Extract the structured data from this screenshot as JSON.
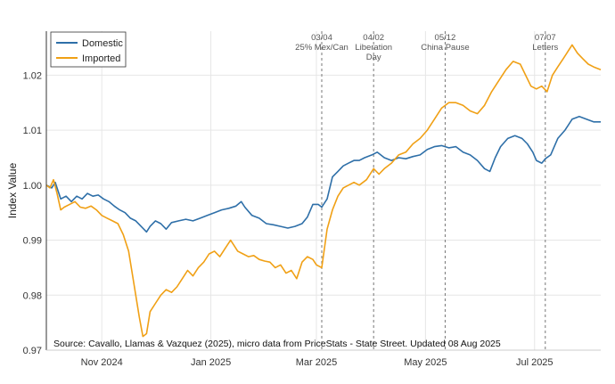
{
  "chart_data": {
    "type": "line",
    "ylabel": "Index Value",
    "xlabel": "",
    "ylim": [
      0.97,
      1.028
    ],
    "y_ticks": [
      {
        "value": 0.97,
        "label": "0.97"
      },
      {
        "value": 0.98,
        "label": "0.98"
      },
      {
        "value": 0.99,
        "label": "0.99"
      },
      {
        "value": 1.0,
        "label": "1.00"
      },
      {
        "value": 1.01,
        "label": "1.01"
      },
      {
        "value": 1.02,
        "label": "1.02"
      }
    ],
    "x_range": [
      "2024-10-01",
      "2025-08-07"
    ],
    "x_ticks": [
      {
        "date": "2024-11-01",
        "label": "Nov 2024"
      },
      {
        "date": "2025-01-01",
        "label": "Jan 2025"
      },
      {
        "date": "2025-03-01",
        "label": "Mar 2025"
      },
      {
        "date": "2025-05-01",
        "label": "May 2025"
      },
      {
        "date": "2025-07-01",
        "label": "Jul 2025"
      }
    ],
    "events": [
      {
        "date": "2025-03-04",
        "label": [
          "03/04",
          "25% Mex/Can"
        ]
      },
      {
        "date": "2025-04-02",
        "label": [
          "04/02",
          "Liberation",
          "Day"
        ]
      },
      {
        "date": "2025-05-12",
        "label": [
          "05/12",
          "China Pause"
        ]
      },
      {
        "date": "2025-07-07",
        "label": [
          "07/07",
          "Letters"
        ]
      }
    ],
    "legend_position": "top-left",
    "grid": true,
    "series": [
      {
        "name": "Domestic",
        "color": "#2e6fa8",
        "points": [
          [
            "2024-10-01",
            1.0
          ],
          [
            "2024-10-04",
            0.9995
          ],
          [
            "2024-10-06",
            1.0005
          ],
          [
            "2024-10-09",
            0.9975
          ],
          [
            "2024-10-12",
            0.998
          ],
          [
            "2024-10-15",
            0.997
          ],
          [
            "2024-10-18",
            0.998
          ],
          [
            "2024-10-21",
            0.9975
          ],
          [
            "2024-10-24",
            0.9985
          ],
          [
            "2024-10-27",
            0.998
          ],
          [
            "2024-10-30",
            0.9982
          ],
          [
            "2024-11-02",
            0.9975
          ],
          [
            "2024-11-05",
            0.997
          ],
          [
            "2024-11-08",
            0.9962
          ],
          [
            "2024-11-11",
            0.9955
          ],
          [
            "2024-11-14",
            0.995
          ],
          [
            "2024-11-17",
            0.994
          ],
          [
            "2024-11-20",
            0.9935
          ],
          [
            "2024-11-23",
            0.9925
          ],
          [
            "2024-11-26",
            0.9915
          ],
          [
            "2024-11-28",
            0.9925
          ],
          [
            "2024-12-01",
            0.9935
          ],
          [
            "2024-12-04",
            0.993
          ],
          [
            "2024-12-07",
            0.992
          ],
          [
            "2024-12-10",
            0.9932
          ],
          [
            "2024-12-14",
            0.9935
          ],
          [
            "2024-12-18",
            0.9938
          ],
          [
            "2024-12-22",
            0.9935
          ],
          [
            "2024-12-26",
            0.994
          ],
          [
            "2024-12-30",
            0.9945
          ],
          [
            "2025-01-03",
            0.995
          ],
          [
            "2025-01-07",
            0.9955
          ],
          [
            "2025-01-11",
            0.9958
          ],
          [
            "2025-01-15",
            0.9962
          ],
          [
            "2025-01-18",
            0.997
          ],
          [
            "2025-01-20",
            0.996
          ],
          [
            "2025-01-24",
            0.9945
          ],
          [
            "2025-01-28",
            0.994
          ],
          [
            "2025-02-01",
            0.993
          ],
          [
            "2025-02-05",
            0.9928
          ],
          [
            "2025-02-09",
            0.9925
          ],
          [
            "2025-02-13",
            0.9922
          ],
          [
            "2025-02-17",
            0.9925
          ],
          [
            "2025-02-21",
            0.993
          ],
          [
            "2025-02-24",
            0.9942
          ],
          [
            "2025-02-27",
            0.9965
          ],
          [
            "2025-03-02",
            0.9965
          ],
          [
            "2025-03-04",
            0.996
          ],
          [
            "2025-03-07",
            0.9975
          ],
          [
            "2025-03-10",
            1.0015
          ],
          [
            "2025-03-13",
            1.0025
          ],
          [
            "2025-03-16",
            1.0035
          ],
          [
            "2025-03-19",
            1.004
          ],
          [
            "2025-03-22",
            1.0045
          ],
          [
            "2025-03-25",
            1.0045
          ],
          [
            "2025-03-28",
            1.005
          ],
          [
            "2025-04-01",
            1.0055
          ],
          [
            "2025-04-04",
            1.006
          ],
          [
            "2025-04-08",
            1.005
          ],
          [
            "2025-04-12",
            1.0045
          ],
          [
            "2025-04-16",
            1.005
          ],
          [
            "2025-04-20",
            1.0048
          ],
          [
            "2025-04-24",
            1.0052
          ],
          [
            "2025-04-28",
            1.0055
          ],
          [
            "2025-05-02",
            1.0065
          ],
          [
            "2025-05-06",
            1.007
          ],
          [
            "2025-05-10",
            1.0072
          ],
          [
            "2025-05-14",
            1.0068
          ],
          [
            "2025-05-18",
            1.007
          ],
          [
            "2025-05-22",
            1.006
          ],
          [
            "2025-05-26",
            1.0055
          ],
          [
            "2025-05-30",
            1.0045
          ],
          [
            "2025-06-03",
            1.003
          ],
          [
            "2025-06-06",
            1.0025
          ],
          [
            "2025-06-09",
            1.005
          ],
          [
            "2025-06-12",
            1.007
          ],
          [
            "2025-06-16",
            1.0085
          ],
          [
            "2025-06-20",
            1.009
          ],
          [
            "2025-06-24",
            1.0085
          ],
          [
            "2025-06-27",
            1.0075
          ],
          [
            "2025-06-30",
            1.006
          ],
          [
            "2025-07-02",
            1.0045
          ],
          [
            "2025-07-05",
            1.004
          ],
          [
            "2025-07-07",
            1.0048
          ],
          [
            "2025-07-10",
            1.0055
          ],
          [
            "2025-07-14",
            1.0085
          ],
          [
            "2025-07-18",
            1.01
          ],
          [
            "2025-07-22",
            1.012
          ],
          [
            "2025-07-26",
            1.0125
          ],
          [
            "2025-07-30",
            1.012
          ],
          [
            "2025-08-03",
            1.0115
          ],
          [
            "2025-08-07",
            1.0115
          ]
        ]
      },
      {
        "name": "Imported",
        "color": "#f0a015",
        "points": [
          [
            "2024-10-01",
            1.0
          ],
          [
            "2024-10-03",
            0.9995
          ],
          [
            "2024-10-05",
            1.001
          ],
          [
            "2024-10-07",
            0.9985
          ],
          [
            "2024-10-09",
            0.9955
          ],
          [
            "2024-10-11",
            0.996
          ],
          [
            "2024-10-14",
            0.9965
          ],
          [
            "2024-10-17",
            0.997
          ],
          [
            "2024-10-20",
            0.996
          ],
          [
            "2024-10-23",
            0.9958
          ],
          [
            "2024-10-26",
            0.9962
          ],
          [
            "2024-10-29",
            0.9955
          ],
          [
            "2024-11-01",
            0.9945
          ],
          [
            "2024-11-04",
            0.994
          ],
          [
            "2024-11-07",
            0.9935
          ],
          [
            "2024-11-10",
            0.993
          ],
          [
            "2024-11-13",
            0.991
          ],
          [
            "2024-11-16",
            0.988
          ],
          [
            "2024-11-19",
            0.982
          ],
          [
            "2024-11-22",
            0.976
          ],
          [
            "2024-11-24",
            0.9725
          ],
          [
            "2024-11-26",
            0.973
          ],
          [
            "2024-11-28",
            0.977
          ],
          [
            "2024-12-01",
            0.9785
          ],
          [
            "2024-12-04",
            0.98
          ],
          [
            "2024-12-07",
            0.981
          ],
          [
            "2024-12-10",
            0.9805
          ],
          [
            "2024-12-13",
            0.9815
          ],
          [
            "2024-12-16",
            0.983
          ],
          [
            "2024-12-19",
            0.9845
          ],
          [
            "2024-12-22",
            0.9835
          ],
          [
            "2024-12-25",
            0.985
          ],
          [
            "2024-12-28",
            0.986
          ],
          [
            "2024-12-31",
            0.9875
          ],
          [
            "2025-01-03",
            0.988
          ],
          [
            "2025-01-06",
            0.987
          ],
          [
            "2025-01-09",
            0.9885
          ],
          [
            "2025-01-12",
            0.99
          ],
          [
            "2025-01-14",
            0.989
          ],
          [
            "2025-01-16",
            0.988
          ],
          [
            "2025-01-19",
            0.9875
          ],
          [
            "2025-01-22",
            0.987
          ],
          [
            "2025-01-25",
            0.9872
          ],
          [
            "2025-01-28",
            0.9865
          ],
          [
            "2025-01-31",
            0.9862
          ],
          [
            "2025-02-03",
            0.986
          ],
          [
            "2025-02-06",
            0.985
          ],
          [
            "2025-02-09",
            0.9855
          ],
          [
            "2025-02-12",
            0.984
          ],
          [
            "2025-02-15",
            0.9845
          ],
          [
            "2025-02-18",
            0.983
          ],
          [
            "2025-02-21",
            0.986
          ],
          [
            "2025-02-24",
            0.987
          ],
          [
            "2025-02-27",
            0.9865
          ],
          [
            "2025-03-01",
            0.9855
          ],
          [
            "2025-03-04",
            0.985
          ],
          [
            "2025-03-07",
            0.992
          ],
          [
            "2025-03-10",
            0.9955
          ],
          [
            "2025-03-13",
            0.998
          ],
          [
            "2025-03-16",
            0.9995
          ],
          [
            "2025-03-19",
            1.0
          ],
          [
            "2025-03-22",
            1.0005
          ],
          [
            "2025-03-25",
            1.0
          ],
          [
            "2025-03-29",
            1.001
          ],
          [
            "2025-04-02",
            1.003
          ],
          [
            "2025-04-05",
            1.002
          ],
          [
            "2025-04-08",
            1.003
          ],
          [
            "2025-04-12",
            1.004
          ],
          [
            "2025-04-16",
            1.0055
          ],
          [
            "2025-04-20",
            1.006
          ],
          [
            "2025-04-24",
            1.0075
          ],
          [
            "2025-04-28",
            1.0085
          ],
          [
            "2025-05-02",
            1.01
          ],
          [
            "2025-05-06",
            1.012
          ],
          [
            "2025-05-10",
            1.014
          ],
          [
            "2025-05-14",
            1.015
          ],
          [
            "2025-05-18",
            1.015
          ],
          [
            "2025-05-22",
            1.0145
          ],
          [
            "2025-05-26",
            1.0135
          ],
          [
            "2025-05-30",
            1.013
          ],
          [
            "2025-06-03",
            1.0145
          ],
          [
            "2025-06-07",
            1.017
          ],
          [
            "2025-06-11",
            1.019
          ],
          [
            "2025-06-15",
            1.021
          ],
          [
            "2025-06-19",
            1.0225
          ],
          [
            "2025-06-23",
            1.022
          ],
          [
            "2025-06-26",
            1.02
          ],
          [
            "2025-06-29",
            1.018
          ],
          [
            "2025-07-02",
            1.0175
          ],
          [
            "2025-07-05",
            1.018
          ],
          [
            "2025-07-08",
            1.017
          ],
          [
            "2025-07-11",
            1.02
          ],
          [
            "2025-07-14",
            1.0215
          ],
          [
            "2025-07-17",
            1.023
          ],
          [
            "2025-07-20",
            1.0245
          ],
          [
            "2025-07-22",
            1.0255
          ],
          [
            "2025-07-25",
            1.024
          ],
          [
            "2025-07-28",
            1.023
          ],
          [
            "2025-07-31",
            1.022
          ],
          [
            "2025-08-03",
            1.0215
          ],
          [
            "2025-08-07",
            1.021
          ]
        ]
      }
    ]
  },
  "source_note": "Source: Cavallo, Llamas & Vazquez (2025), micro data from PriceStats - State Street. Updated 08 Aug 2025"
}
